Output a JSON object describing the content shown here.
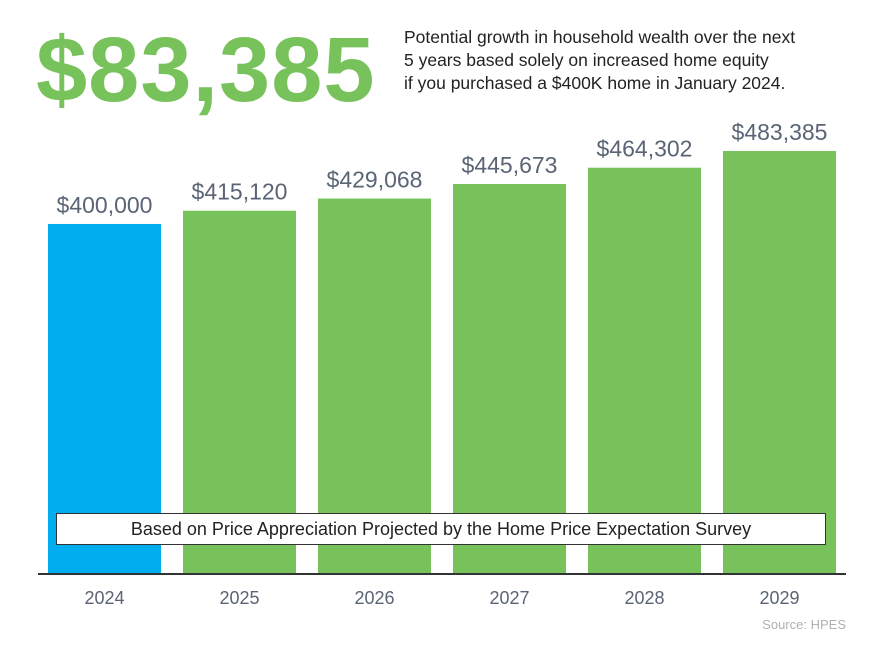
{
  "headline": "$83,385",
  "subtitle_lines": [
    "Potential growth in household wealth over the next",
    "5 years based solely on increased home equity",
    "if you purchased a $400K home in January 2024."
  ],
  "note": "Based on Price Appreciation Projected by the Home Price Expectation Survey",
  "source": "Source: HPES",
  "colors": {
    "first_bar": "#00aeef",
    "other_bars": "#77c25a",
    "headline": "#77c25a",
    "value_labels": "#5a6475",
    "axis": "#333333"
  },
  "chart_data": {
    "type": "bar",
    "categories": [
      "2024",
      "2025",
      "2026",
      "2027",
      "2028",
      "2029"
    ],
    "values": [
      400000,
      415120,
      429068,
      445673,
      464302,
      483385
    ],
    "value_labels": [
      "$400,000",
      "$415,120",
      "$429,068",
      "$445,673",
      "$464,302",
      "$483,385"
    ],
    "title": "$83,385",
    "xlabel": "",
    "ylabel": "",
    "grid": false,
    "legend": "none"
  }
}
